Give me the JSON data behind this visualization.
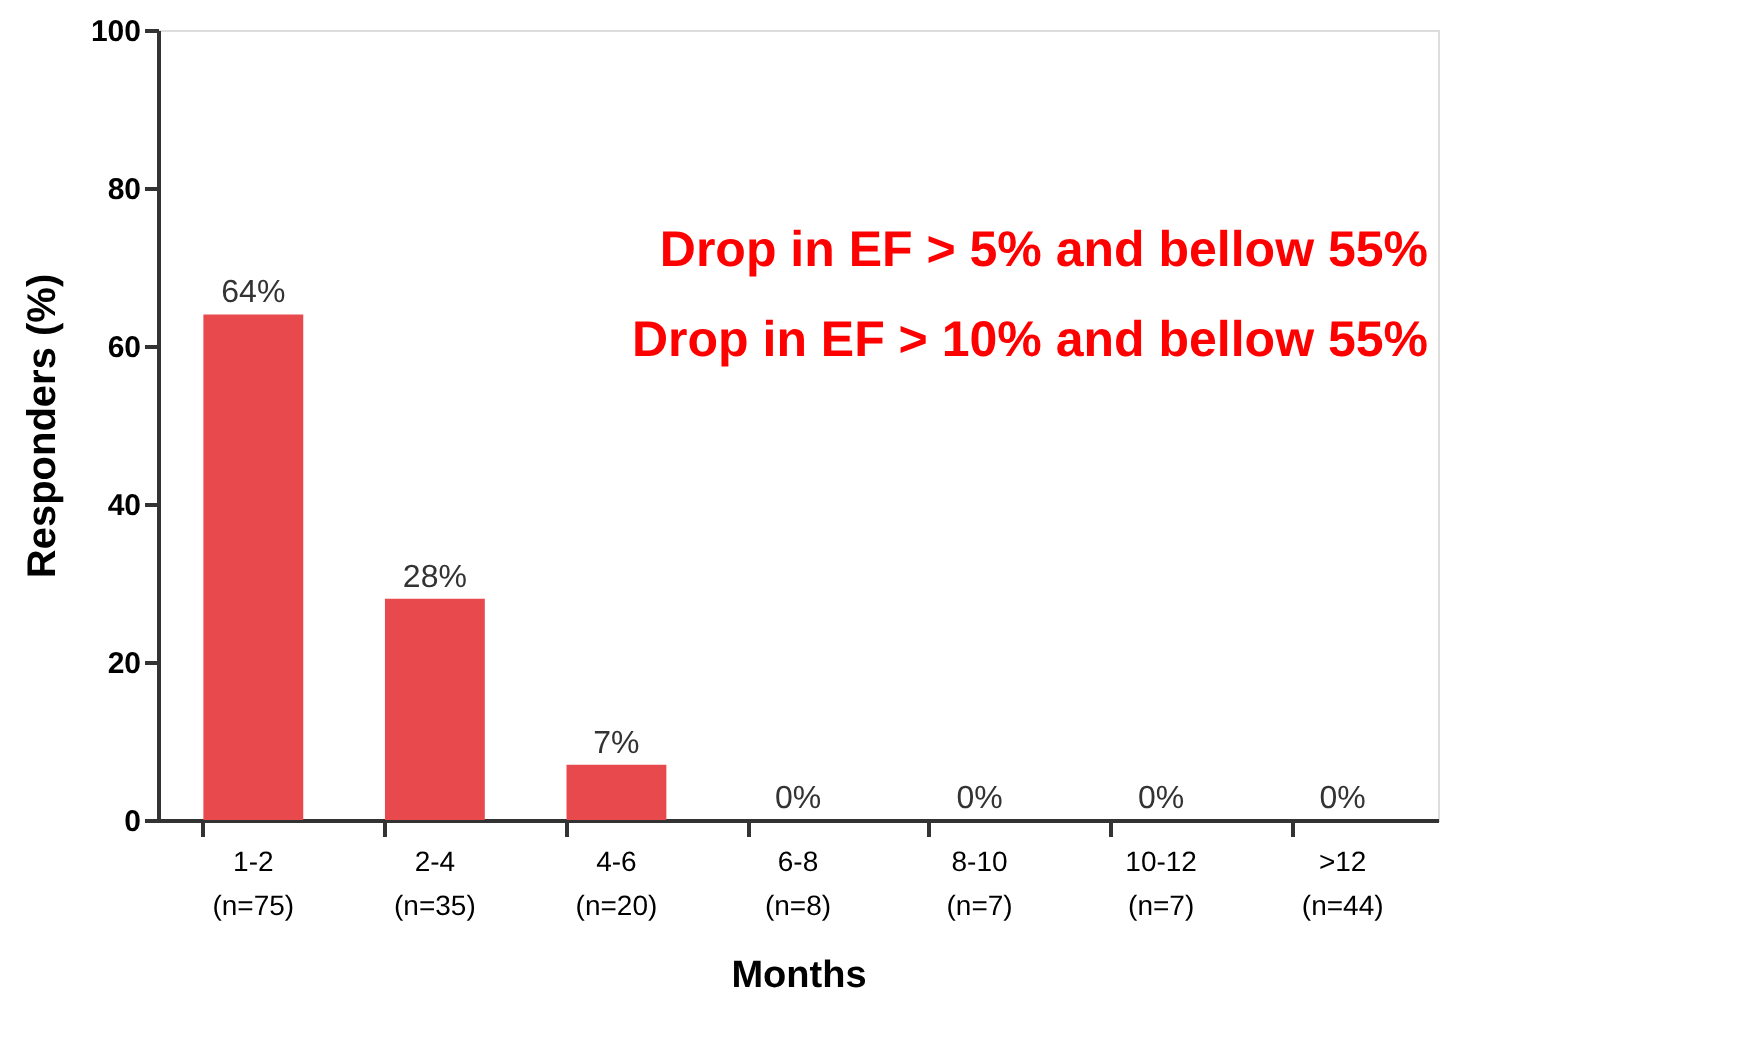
{
  "chart_data": {
    "type": "bar",
    "xlabel": "Months",
    "ylabel": "Responders (%)",
    "categories": [
      "1-2\n(n=75)",
      "2-4\n(n=35)",
      "4-6\n(n=20)",
      "6-8\n(n=8)",
      "8-10\n(n=7)",
      "10-12\n(n=7)",
      ">12\n(n=44)"
    ],
    "values": [
      64,
      28,
      7,
      0,
      0,
      0,
      0
    ],
    "value_labels": [
      "64%",
      "28%",
      "7%",
      "0%",
      "0%",
      "0%",
      "0%"
    ],
    "color": "#e8494d",
    "ylim": [
      0,
      100
    ],
    "yticks": [
      0,
      20,
      40,
      60,
      80,
      100
    ],
    "grid": false,
    "annotations": [
      "Drop in EF >   5% and bellow  55%",
      "Drop in EF > 10% and bellow  55%"
    ]
  }
}
